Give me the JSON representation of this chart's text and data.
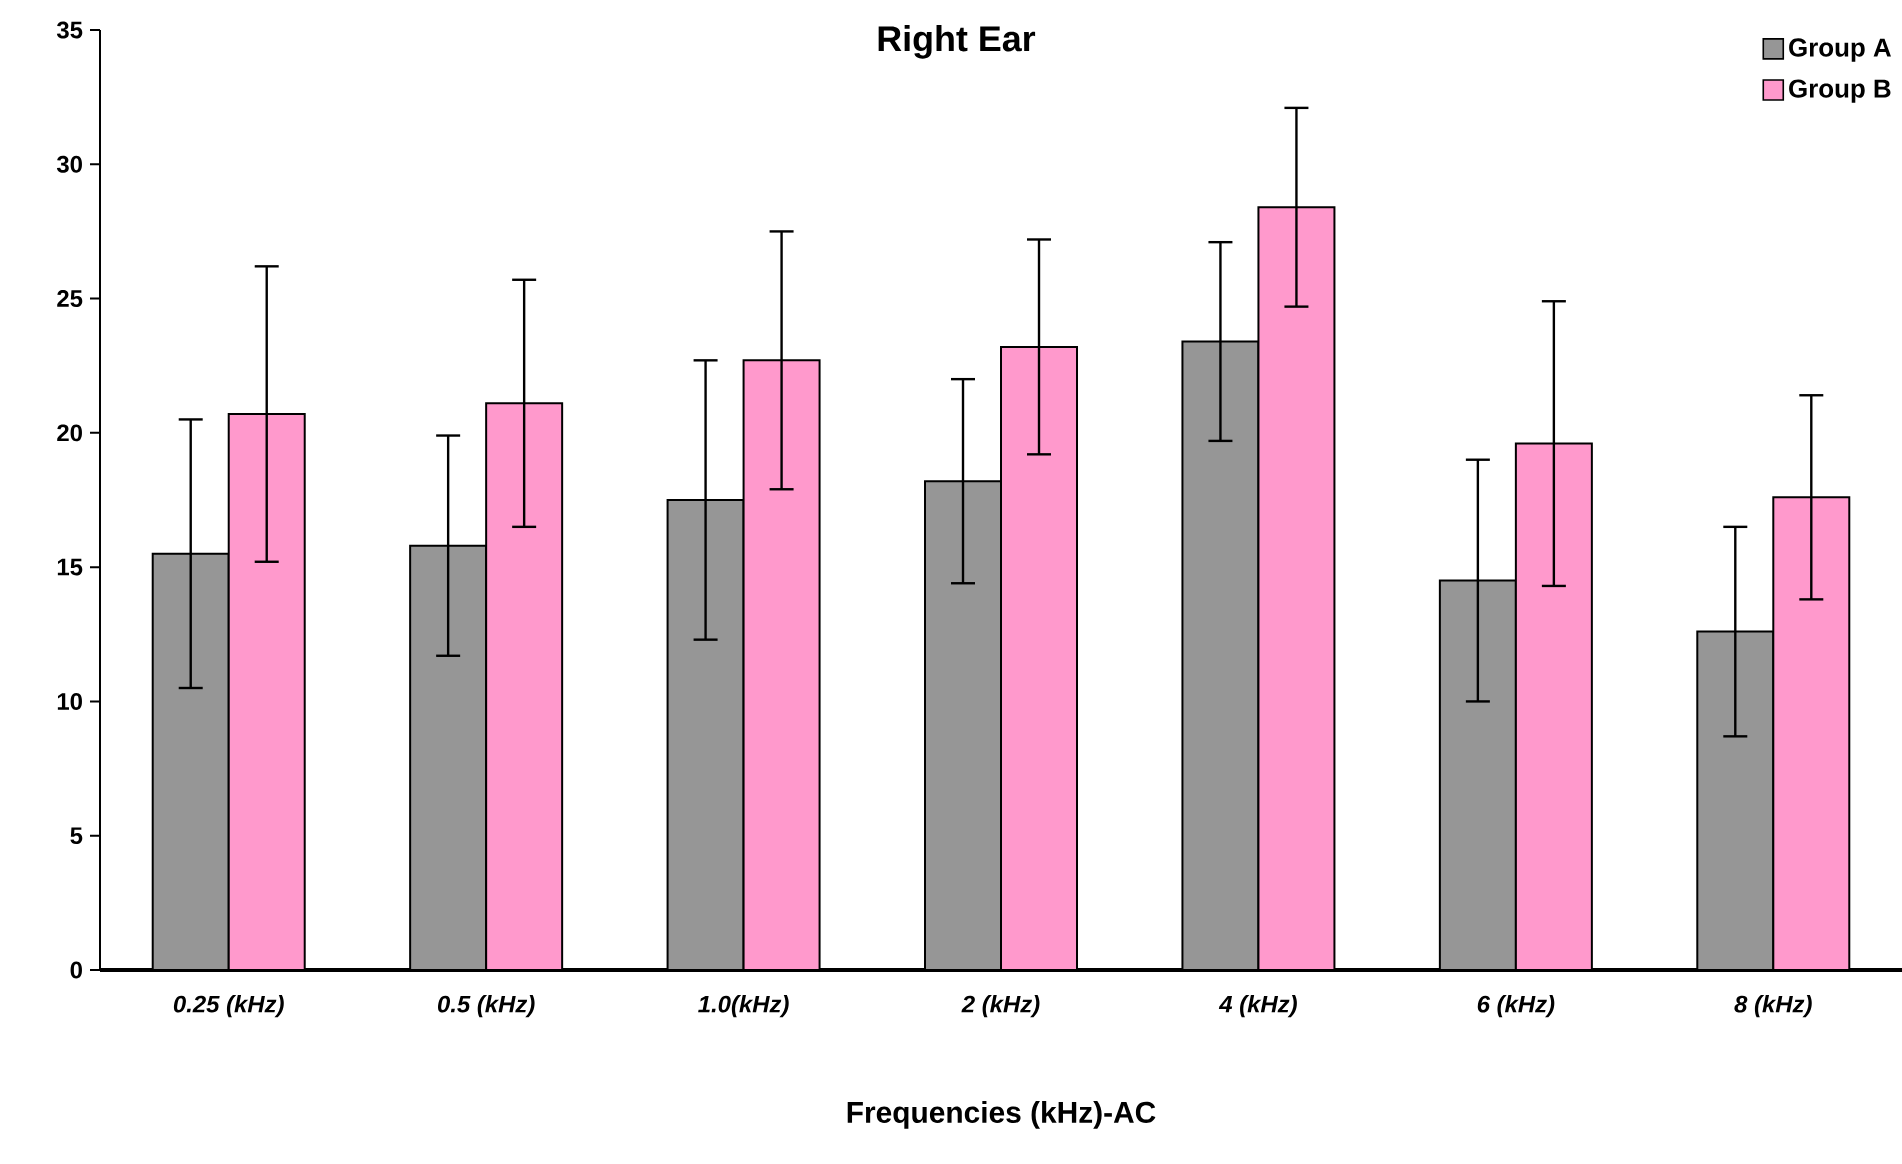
{
  "chart_data": {
    "type": "bar",
    "title": "Right Ear",
    "xlabel": "Frequencies (kHz)-AC",
    "categories": [
      "0.25 (kHz)",
      "0.5 (kHz)",
      "1.0(kHz)",
      "2 (kHz)",
      "4 (kHz)",
      "6 (kHz)",
      "8 (kHz)"
    ],
    "series": [
      {
        "name": "Group A",
        "color": "#969696",
        "values": [
          15.5,
          15.8,
          17.5,
          18.2,
          23.4,
          14.5,
          12.6
        ],
        "errors": [
          5.0,
          4.1,
          5.2,
          3.8,
          3.7,
          4.5,
          3.9
        ]
      },
      {
        "name": "Group B",
        "color": "#ff99cc",
        "values": [
          20.7,
          21.1,
          22.7,
          23.2,
          28.4,
          19.6,
          17.6
        ],
        "errors": [
          5.5,
          4.6,
          4.8,
          4.0,
          3.7,
          5.3,
          3.8
        ]
      }
    ],
    "ylim": [
      0,
      35
    ],
    "yticks": [
      0,
      5,
      10,
      15,
      20,
      25,
      30,
      35
    ],
    "legend": "top right"
  }
}
